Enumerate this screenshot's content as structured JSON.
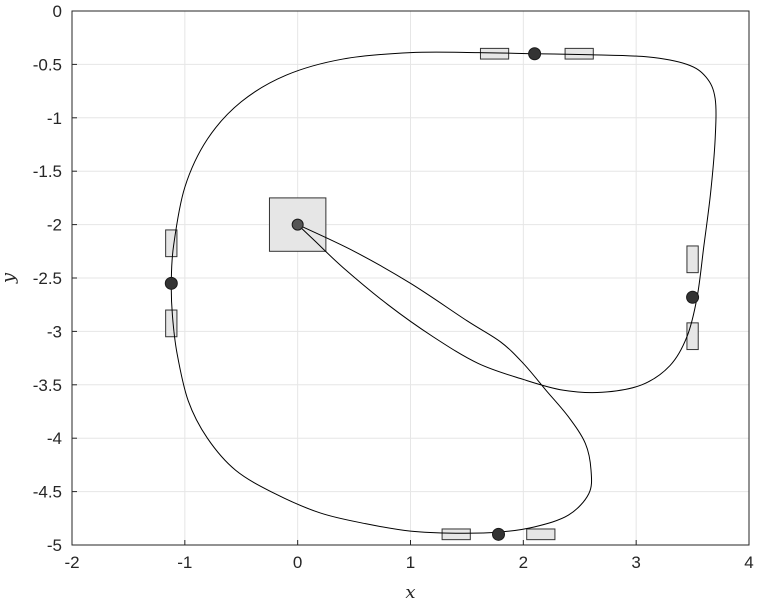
{
  "chart_data": {
    "type": "line",
    "title": "",
    "xlabel": "x",
    "ylabel": "y",
    "xlim": [
      -2,
      4
    ],
    "ylim": [
      -5,
      0
    ],
    "xticks": [
      -2,
      -1,
      0,
      1,
      2,
      3,
      4
    ],
    "yticks": [
      0,
      -0.5,
      -1,
      -1.5,
      -2,
      -2.5,
      -3,
      -3.5,
      -4,
      -4.5,
      -5
    ],
    "grid": true,
    "colors": {
      "line": "#000000",
      "marker": "#333333",
      "box_fill": "#e6e6e6",
      "box_stroke": "#333333",
      "grid": "#e6e6e6"
    },
    "series": [
      {
        "name": "trajectory",
        "points": [
          [
            0,
            -2
          ],
          [
            0.5,
            -2.25
          ],
          [
            1.0,
            -2.55
          ],
          [
            1.5,
            -2.9
          ],
          [
            1.8,
            -3.1
          ],
          [
            2.0,
            -3.3
          ],
          [
            2.2,
            -3.55
          ],
          [
            2.4,
            -3.8
          ],
          [
            2.55,
            -4.05
          ],
          [
            2.6,
            -4.3
          ],
          [
            2.58,
            -4.52
          ],
          [
            2.4,
            -4.72
          ],
          [
            2.1,
            -4.83
          ],
          [
            1.78,
            -4.88
          ],
          [
            1.4,
            -4.89
          ],
          [
            1.0,
            -4.87
          ],
          [
            0.6,
            -4.8
          ],
          [
            0.2,
            -4.7
          ],
          [
            -0.2,
            -4.52
          ],
          [
            -0.55,
            -4.3
          ],
          [
            -0.8,
            -4.0
          ],
          [
            -0.97,
            -3.65
          ],
          [
            -1.07,
            -3.2
          ],
          [
            -1.11,
            -2.85
          ],
          [
            -1.12,
            -2.55
          ],
          [
            -1.1,
            -2.2
          ],
          [
            -1.0,
            -1.65
          ],
          [
            -0.8,
            -1.2
          ],
          [
            -0.5,
            -0.85
          ],
          [
            -0.1,
            -0.6
          ],
          [
            0.4,
            -0.45
          ],
          [
            1.0,
            -0.39
          ],
          [
            1.6,
            -0.39
          ],
          [
            2.1,
            -0.4
          ],
          [
            2.6,
            -0.41
          ],
          [
            3.1,
            -0.43
          ],
          [
            3.45,
            -0.5
          ],
          [
            3.62,
            -0.62
          ],
          [
            3.7,
            -0.82
          ],
          [
            3.7,
            -1.2
          ],
          [
            3.66,
            -1.7
          ],
          [
            3.6,
            -2.2
          ],
          [
            3.54,
            -2.68
          ],
          [
            3.45,
            -3.05
          ],
          [
            3.3,
            -3.32
          ],
          [
            3.05,
            -3.5
          ],
          [
            2.7,
            -3.57
          ],
          [
            2.35,
            -3.55
          ],
          [
            2.0,
            -3.45
          ],
          [
            1.6,
            -3.3
          ],
          [
            1.2,
            -3.05
          ],
          [
            0.8,
            -2.75
          ],
          [
            0.4,
            -2.4
          ],
          [
            0.15,
            -2.15
          ],
          [
            0,
            -2
          ]
        ]
      }
    ],
    "gates": [
      {
        "name": "center",
        "x": 0,
        "y": -2,
        "half_x": 0.25,
        "half_y": 0.25
      },
      {
        "name": "top",
        "x": 2.1,
        "y": -0.4
      },
      {
        "name": "right",
        "x": 3.5,
        "y": -2.68
      },
      {
        "name": "bottom",
        "x": 1.78,
        "y": -4.9
      },
      {
        "name": "left",
        "x": -1.12,
        "y": -2.55
      }
    ],
    "boxes": [
      {
        "name": "top-left-box",
        "x1": 1.62,
        "x2": 1.87,
        "y1": -0.35,
        "y2": -0.45
      },
      {
        "name": "top-right-box",
        "x1": 2.37,
        "x2": 2.62,
        "y1": -0.35,
        "y2": -0.45
      },
      {
        "name": "right-upper-box",
        "x1": 3.45,
        "x2": 3.55,
        "y1": -2.2,
        "y2": -2.45
      },
      {
        "name": "right-lower-box",
        "x1": 3.45,
        "x2": 3.55,
        "y1": -2.92,
        "y2": -3.17
      },
      {
        "name": "bottom-left-box",
        "x1": 1.28,
        "x2": 1.53,
        "y1": -4.85,
        "y2": -4.95
      },
      {
        "name": "bottom-right-box",
        "x1": 2.03,
        "x2": 2.28,
        "y1": -4.85,
        "y2": -4.95
      },
      {
        "name": "left-upper-box",
        "x1": -1.17,
        "x2": -1.07,
        "y1": -2.05,
        "y2": -2.3
      },
      {
        "name": "left-lower-box",
        "x1": -1.17,
        "x2": -1.07,
        "y1": -2.8,
        "y2": -3.05
      }
    ]
  }
}
